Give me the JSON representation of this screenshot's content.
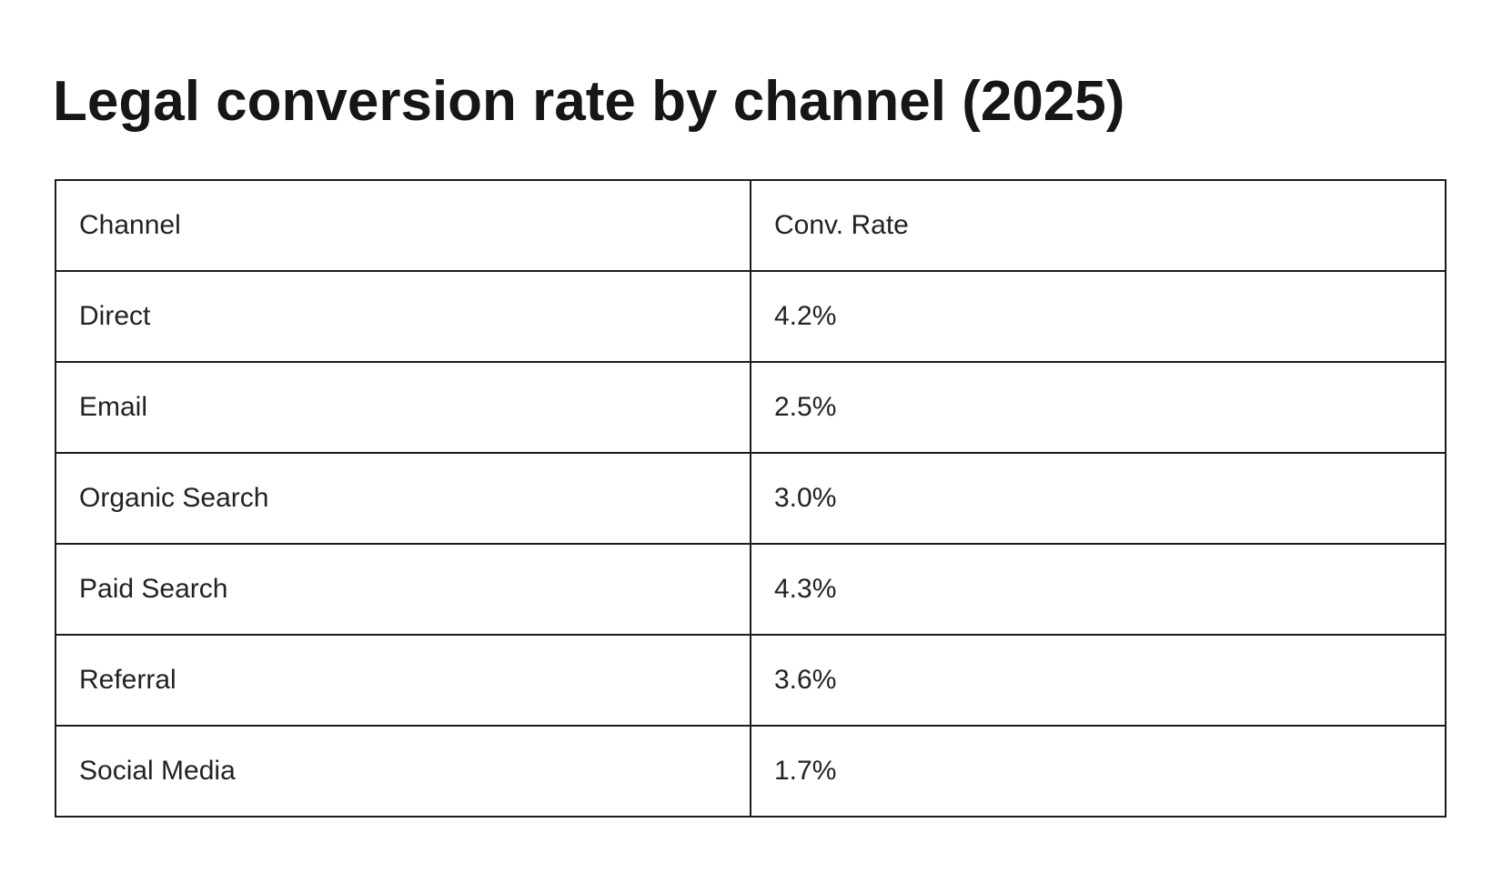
{
  "chart_data": {
    "type": "table",
    "title": "Legal conversion rate by channel (2025)",
    "columns": [
      "Channel",
      "Conv. Rate"
    ],
    "rows": [
      {
        "channel": "Direct",
        "rate": "4.2%"
      },
      {
        "channel": "Email",
        "rate": "2.5%"
      },
      {
        "channel": "Organic Search",
        "rate": "3.0%"
      },
      {
        "channel": "Paid Search",
        "rate": "4.3%"
      },
      {
        "channel": "Referral",
        "rate": "3.6%"
      },
      {
        "channel": "Social Media",
        "rate": "1.7%"
      }
    ],
    "values": [
      4.2,
      2.5,
      3.0,
      4.3,
      3.6,
      1.7
    ]
  }
}
